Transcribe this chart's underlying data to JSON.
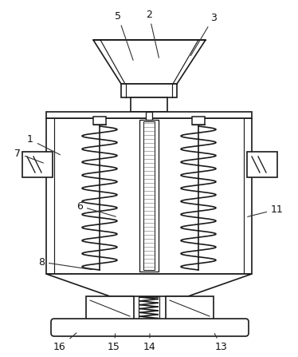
{
  "bg_color": "#ffffff",
  "line_color": "#1a1a1a",
  "line_width": 1.2,
  "figsize": [
    3.74,
    4.47
  ],
  "dpi": 100,
  "labels_data": [
    [
      "1",
      38,
      175,
      78,
      195
    ],
    [
      "2",
      187,
      18,
      200,
      75
    ],
    [
      "3",
      268,
      22,
      238,
      72
    ],
    [
      "5",
      148,
      20,
      168,
      78
    ],
    [
      "6",
      100,
      258,
      148,
      272
    ],
    [
      "7",
      22,
      192,
      57,
      205
    ],
    [
      "8",
      52,
      328,
      118,
      338
    ],
    [
      "11",
      348,
      262,
      308,
      272
    ],
    [
      "13",
      278,
      435,
      268,
      415
    ],
    [
      "14",
      188,
      435,
      188,
      415
    ],
    [
      "15",
      143,
      435,
      145,
      415
    ],
    [
      "16",
      75,
      435,
      98,
      415
    ]
  ]
}
